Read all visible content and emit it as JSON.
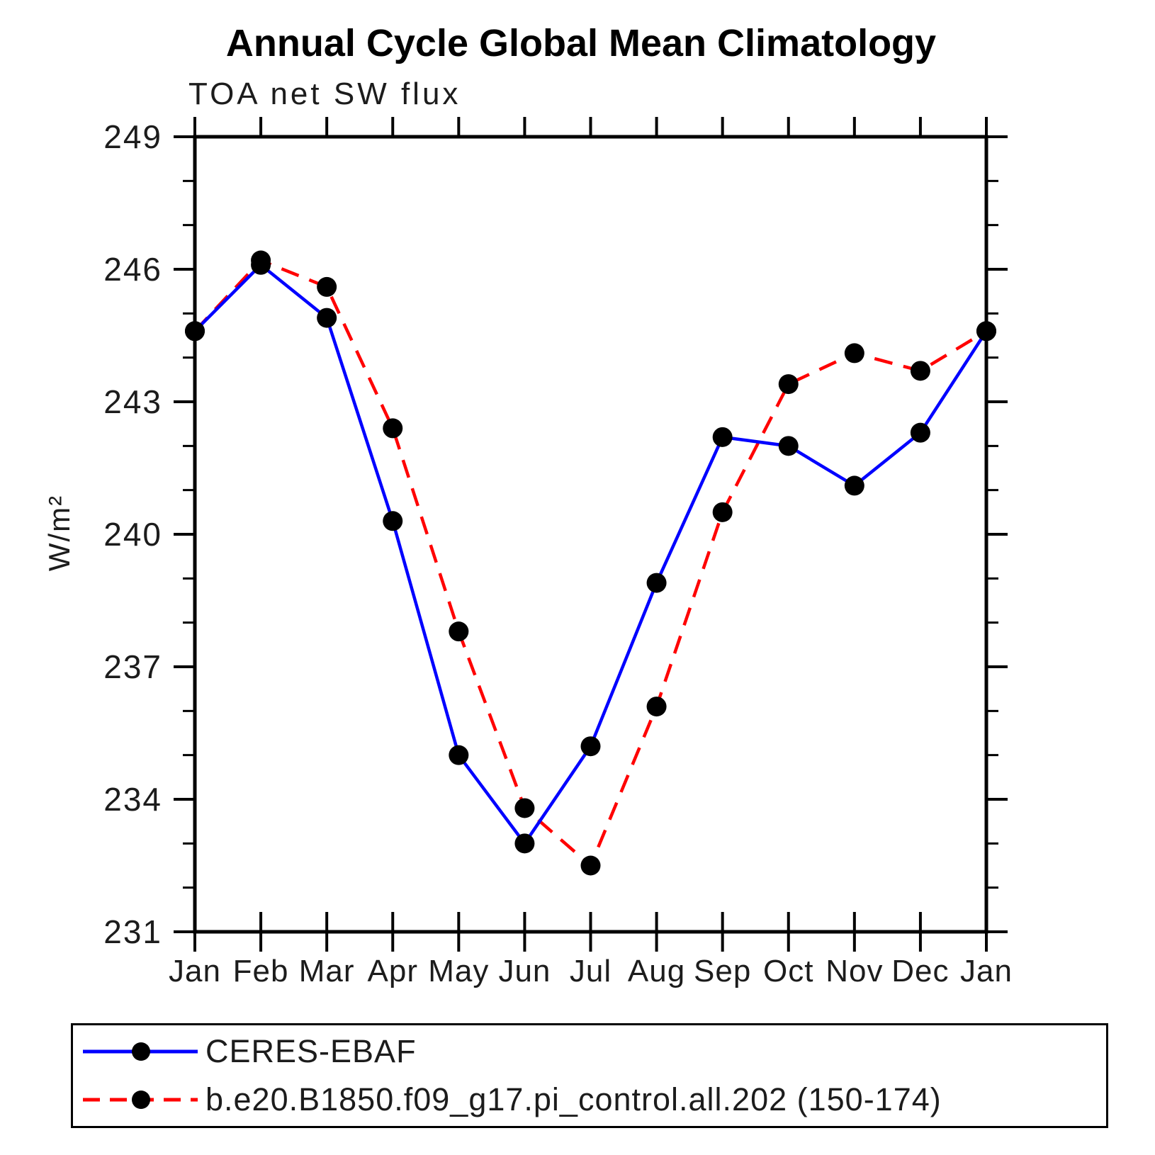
{
  "title": "Annual Cycle Global Mean Climatology",
  "subtitle": "TOA net SW flux",
  "y_axis_label": "W/m²",
  "chart_data": {
    "type": "line",
    "title": "Annual Cycle Global Mean Climatology",
    "subtitle": "TOA net SW flux",
    "ylabel": "W/m²",
    "xlabel": "",
    "x_categories": [
      "Jan",
      "Feb",
      "Mar",
      "Apr",
      "May",
      "Jun",
      "Jul",
      "Aug",
      "Sep",
      "Oct",
      "Nov",
      "Dec",
      "Jan"
    ],
    "series": [
      {
        "name": "CERES-EBAF",
        "color": "#0000ff",
        "line_style": "solid",
        "marker": "black-filled-circle",
        "values": [
          244.6,
          246.1,
          244.9,
          240.3,
          235.0,
          233.0,
          235.2,
          238.9,
          242.2,
          242.0,
          241.1,
          242.3,
          244.6
        ]
      },
      {
        "name": "b.e20.B1850.f09_g17.pi_control.all.202 (150-174)",
        "color": "#ff0000",
        "line_style": "dashed",
        "marker": "black-filled-circle",
        "values": [
          244.6,
          246.2,
          245.6,
          242.4,
          237.8,
          233.8,
          232.5,
          236.1,
          240.5,
          243.4,
          244.1,
          243.7,
          244.6
        ]
      }
    ],
    "ylim": [
      231,
      249
    ],
    "y_major_ticks": [
      231,
      234,
      237,
      240,
      243,
      246,
      249
    ],
    "y_minor_tick_step": 1,
    "grid": false,
    "frame": "box-with-outward-ticks",
    "legend_position": "below"
  },
  "legend": {
    "entries": [
      {
        "label": "CERES-EBAF",
        "color": "#0000ff",
        "line_style": "solid",
        "marker": "black-filled-circle"
      },
      {
        "label": "b.e20.B1850.f09_g17.pi_control.all.202 (150-174)",
        "color": "#ff0000",
        "line_style": "dashed",
        "marker": "black-filled-circle"
      }
    ]
  },
  "colors": {
    "axis": "#000000",
    "text": "#1c1c1c",
    "background": "#ffffff",
    "series_obs": "#0000ff",
    "series_model": "#ff0000",
    "marker": "#000000"
  }
}
